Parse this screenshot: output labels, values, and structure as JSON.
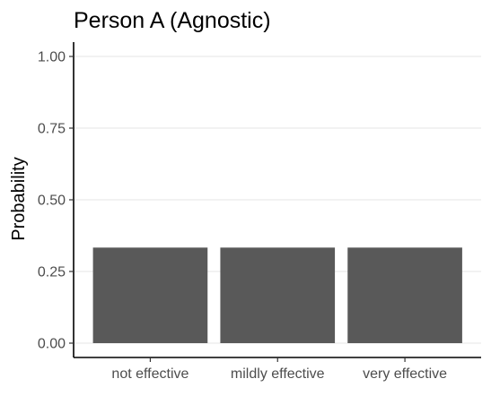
{
  "chart_data": {
    "type": "bar",
    "title": "Person A (Agnostic)",
    "xlabel": "",
    "ylabel": "Probability",
    "categories": [
      "not effective",
      "mildly effective",
      "very effective"
    ],
    "values": [
      0.3333,
      0.3333,
      0.3333
    ],
    "ylim": [
      0,
      1.04
    ],
    "yticks": [
      0,
      0.25,
      0.5,
      0.75,
      1.0
    ],
    "ytick_labels": [
      "0.00",
      "0.25",
      "0.50",
      "0.75",
      "1.00"
    ],
    "grid": "horizontal",
    "legend": "none",
    "bar_color": "#595959",
    "grid_color": "#ebebeb",
    "axis_color": "#000000",
    "tick_label_color": "#4d4d4d"
  }
}
